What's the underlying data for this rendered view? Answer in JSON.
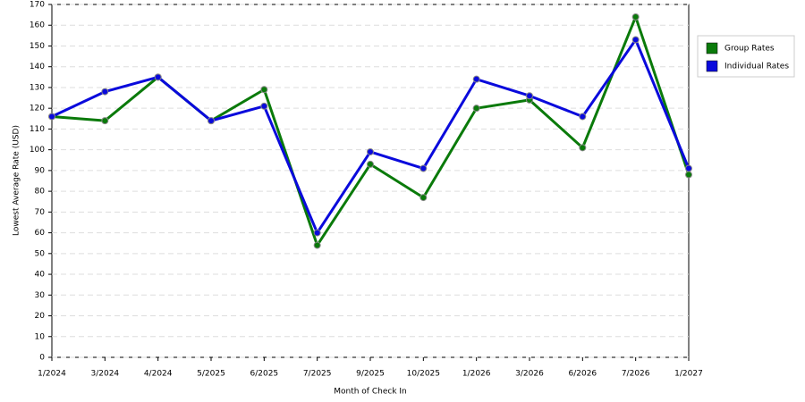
{
  "chart_data": {
    "type": "line",
    "x_label": "Month of Check In",
    "y_label": "Lowest Average Rate (USD)",
    "categories": [
      "1/2024",
      "3/2024",
      "4/2024",
      "5/2025",
      "6/2025",
      "7/2025",
      "9/2025",
      "10/2025",
      "1/2026",
      "3/2026",
      "6/2026",
      "7/2026",
      "1/2027"
    ],
    "series": [
      {
        "name": "Group Rates",
        "color": "#0a7a0a",
        "values": [
          116,
          114,
          135,
          114,
          129,
          54,
          93,
          77,
          120,
          124,
          101,
          164,
          88
        ]
      },
      {
        "name": "Individual Rates",
        "color": "#0a0adc",
        "values": [
          116,
          128,
          135,
          114,
          121,
          60,
          99,
          91,
          134,
          126,
          116,
          153,
          91
        ]
      }
    ],
    "ylim": [
      0,
      170
    ],
    "yticks": [
      0,
      10,
      20,
      30,
      40,
      50,
      60,
      70,
      80,
      90,
      100,
      110,
      120,
      130,
      140,
      150,
      160,
      170
    ],
    "grid": true,
    "legend": "right"
  }
}
